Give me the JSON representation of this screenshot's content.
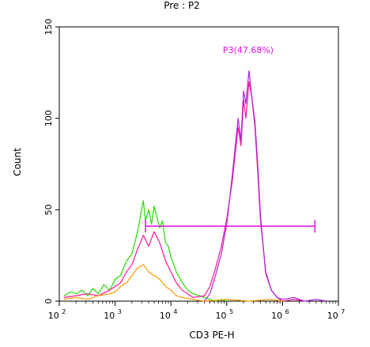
{
  "chart_data": {
    "type": "line",
    "title": "Pre : P2",
    "xlabel": "CD3 PE-H",
    "ylabel": "Count",
    "xscale": "log",
    "xlim": [
      100,
      10000000
    ],
    "ylim": [
      0,
      150
    ],
    "x_ticks": [
      {
        "base": "10",
        "exp": "2"
      },
      {
        "base": "10",
        "exp": "3"
      },
      {
        "base": "10",
        "exp": "4"
      },
      {
        "base": "10",
        "exp": "5"
      },
      {
        "base": "10",
        "exp": "6"
      },
      {
        "base": "10",
        "exp": "7"
      }
    ],
    "y_ticks": [
      "0",
      "50",
      "100",
      "150"
    ],
    "grid": false,
    "gate": {
      "label": "P3(47.68%)",
      "x_start": 3500,
      "x_end": 3800000,
      "y": 41,
      "color": "#e010e0"
    },
    "series": [
      {
        "color": "#22dd00",
        "points": [
          [
            120,
            3
          ],
          [
            160,
            5
          ],
          [
            200,
            4
          ],
          [
            250,
            6
          ],
          [
            320,
            3
          ],
          [
            400,
            7
          ],
          [
            500,
            4
          ],
          [
            630,
            9
          ],
          [
            800,
            6
          ],
          [
            1000,
            12
          ],
          [
            1250,
            14
          ],
          [
            1600,
            22
          ],
          [
            2000,
            26
          ],
          [
            2300,
            33
          ],
          [
            2600,
            40
          ],
          [
            2900,
            48
          ],
          [
            3200,
            55
          ],
          [
            3500,
            44
          ],
          [
            4000,
            50
          ],
          [
            4500,
            42
          ],
          [
            5000,
            52
          ],
          [
            5600,
            46
          ],
          [
            6300,
            40
          ],
          [
            7000,
            44
          ],
          [
            8000,
            32
          ],
          [
            9000,
            30
          ],
          [
            10000,
            24
          ],
          [
            12500,
            16
          ],
          [
            16000,
            10
          ],
          [
            20000,
            6
          ],
          [
            25000,
            4
          ],
          [
            32000,
            3
          ],
          [
            40000,
            2
          ],
          [
            50000,
            1
          ],
          [
            63000,
            0
          ],
          [
            80000,
            1
          ],
          [
            100000,
            0
          ]
        ]
      },
      {
        "color": "#ff1493",
        "points": [
          [
            120,
            2
          ],
          [
            200,
            3
          ],
          [
            320,
            4
          ],
          [
            500,
            3
          ],
          [
            800,
            6
          ],
          [
            1000,
            8
          ],
          [
            1250,
            10
          ],
          [
            1600,
            16
          ],
          [
            2000,
            20
          ],
          [
            2500,
            28
          ],
          [
            3200,
            36
          ],
          [
            4000,
            30
          ],
          [
            5000,
            38
          ],
          [
            6300,
            32
          ],
          [
            8000,
            22
          ],
          [
            10000,
            16
          ],
          [
            12500,
            10
          ],
          [
            16000,
            6
          ],
          [
            25000,
            2
          ],
          [
            40000,
            3
          ],
          [
            50000,
            8
          ],
          [
            63000,
            18
          ],
          [
            80000,
            30
          ],
          [
            100000,
            45
          ],
          [
            125000,
            65
          ],
          [
            160000,
            95
          ],
          [
            180000,
            85
          ],
          [
            200000,
            110
          ],
          [
            220000,
            100
          ],
          [
            250000,
            120
          ],
          [
            280000,
            112
          ],
          [
            320000,
            95
          ],
          [
            360000,
            70
          ],
          [
            400000,
            45
          ],
          [
            450000,
            30
          ],
          [
            500000,
            15
          ],
          [
            630000,
            6
          ],
          [
            800000,
            2
          ],
          [
            1000000,
            0
          ],
          [
            1600000,
            1
          ],
          [
            2500000,
            0
          ]
        ]
      },
      {
        "color": "#aa22dd",
        "points": [
          [
            40000,
            0
          ],
          [
            50000,
            4
          ],
          [
            63000,
            14
          ],
          [
            80000,
            26
          ],
          [
            100000,
            42
          ],
          [
            125000,
            68
          ],
          [
            160000,
            100
          ],
          [
            180000,
            88
          ],
          [
            200000,
            115
          ],
          [
            220000,
            108
          ],
          [
            250000,
            126
          ],
          [
            280000,
            112
          ],
          [
            320000,
            98
          ],
          [
            360000,
            74
          ],
          [
            400000,
            48
          ],
          [
            450000,
            30
          ],
          [
            500000,
            16
          ],
          [
            630000,
            6
          ],
          [
            800000,
            2
          ],
          [
            1000000,
            1
          ],
          [
            1600000,
            2
          ],
          [
            2500000,
            0
          ],
          [
            4000000,
            1
          ],
          [
            6300000,
            0
          ]
        ]
      },
      {
        "color": "#ff9900",
        "points": [
          [
            120,
            1
          ],
          [
            200,
            2
          ],
          [
            320,
            1
          ],
          [
            500,
            3
          ],
          [
            800,
            4
          ],
          [
            1000,
            5
          ],
          [
            1250,
            8
          ],
          [
            1600,
            10
          ],
          [
            2000,
            14
          ],
          [
            2500,
            18
          ],
          [
            3200,
            20
          ],
          [
            4000,
            16
          ],
          [
            5000,
            14
          ],
          [
            6300,
            12
          ],
          [
            8000,
            8
          ],
          [
            10000,
            6
          ],
          [
            12500,
            3
          ],
          [
            16000,
            2
          ],
          [
            25000,
            1
          ],
          [
            40000,
            0
          ],
          [
            100000,
            1
          ],
          [
            250000,
            0
          ],
          [
            630000,
            1
          ],
          [
            1000000,
            0
          ]
        ]
      }
    ]
  }
}
